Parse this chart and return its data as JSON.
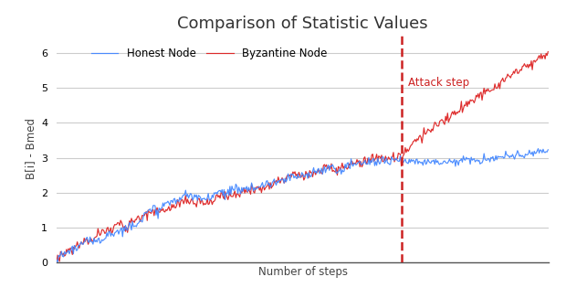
{
  "title": "Comparison of Statistic Values",
  "xlabel": "Number of steps",
  "ylabel": "B[i] - Bmed",
  "honest_label": "Honest Node",
  "byzantine_label": "Byzantine Node",
  "attack_label": "Attack step",
  "honest_color": "#4488ff",
  "byzantine_color": "#dd2222",
  "attack_line_color": "#cc2222",
  "n_steps": 500,
  "attack_step": 350,
  "ylim": [
    0,
    6.5
  ],
  "xlim": [
    0,
    500
  ],
  "yticks": [
    0,
    1,
    2,
    3,
    4,
    5,
    6
  ],
  "bg_color": "#ffffff",
  "grid_color": "#cccccc",
  "title_fontsize": 13,
  "label_fontsize": 8.5,
  "legend_fontsize": 8.5,
  "tick_fontsize": 8
}
